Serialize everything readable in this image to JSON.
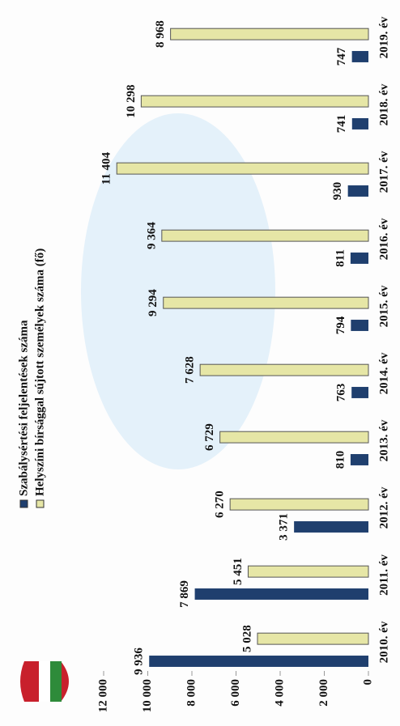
{
  "chart_data": {
    "type": "bar",
    "categories": [
      "2010. év",
      "2011. év",
      "2012. év",
      "2013. év",
      "2014. év",
      "2015. év",
      "2016. év",
      "2017. év",
      "2018. év",
      "2019. év"
    ],
    "series": [
      {
        "name": "Szabálysértési feljelentések száma",
        "color": "#1f3f6e",
        "values": [
          9936,
          7869,
          3371,
          810,
          763,
          794,
          811,
          930,
          741,
          747
        ],
        "value_labels": [
          "9 936",
          "7 869",
          "3 371",
          "810",
          "763",
          "794",
          "811",
          "930",
          "741",
          "747"
        ]
      },
      {
        "name": "Helyszíni bírsággal sújtott személyek száma (fő)",
        "color": "#e6e6a6",
        "values": [
          5028,
          5451,
          6270,
          6729,
          7628,
          9294,
          9364,
          11404,
          10298,
          8968
        ],
        "value_labels": [
          "5 028",
          "5 451",
          "6 270",
          "6 729",
          "7 628",
          "9 294",
          "9 364",
          "11 404",
          "10 298",
          "8 968"
        ]
      }
    ],
    "ylim": [
      0,
      12000
    ],
    "yticks": [
      0,
      {
        "value": 2000,
        "label": "2 000"
      },
      {
        "value": 4000,
        "label": "4 000"
      },
      {
        "value": 6000,
        "label": "6 000"
      },
      {
        "value": 8000,
        "label": "8 000"
      },
      {
        "value": 10000,
        "label": "10 000"
      },
      {
        "value": 12000,
        "label": "12 000"
      }
    ],
    "grid": false,
    "legend": "top"
  }
}
